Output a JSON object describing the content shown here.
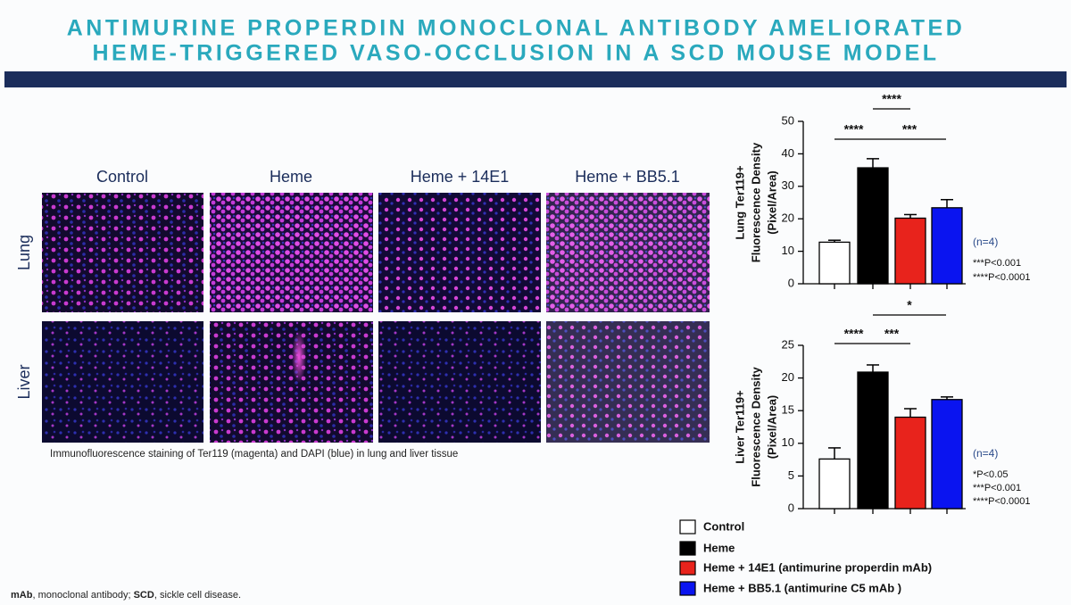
{
  "title_lines": [
    "ANTIMURINE PROPERDIN MONOCLONAL ANTIBODY AMELIORATED",
    "HEME-TRIGGERED VASO-OCCLUSION IN A SCD MOUSE MODEL"
  ],
  "image_panel": {
    "columns": [
      "Control",
      "Heme",
      "Heme + 14E1",
      "Heme + BB5.1"
    ],
    "rows": [
      "Lung",
      "Liver"
    ],
    "caption": "Immunofluorescence staining of Ter119 (magenta) and DAPI (blue) in lung and liver tissue"
  },
  "legend": [
    {
      "name": "Control",
      "color": "#ffffff"
    },
    {
      "name": "Heme",
      "color": "#000000"
    },
    {
      "name": "Heme + 14E1 (antimurine properdin mAb)",
      "color": "#e8231c"
    },
    {
      "name": "Heme + BB5.1 (antimurine C5 mAb )",
      "color": "#0a14f0"
    }
  ],
  "chart_data": [
    {
      "type": "bar",
      "ylabel": [
        "Lung Ter119+",
        "Fluorescence Density",
        "(Pixel/Area)"
      ],
      "values": [
        12.8,
        35.7,
        20.2,
        23.4
      ],
      "errors": [
        0.6,
        2.8,
        1.1,
        2.5
      ],
      "ylim": [
        0,
        50
      ],
      "yticks": [
        0,
        10,
        20,
        30,
        40,
        50
      ],
      "significance": [
        "****",
        "****",
        "***"
      ],
      "notes": [
        "(n=4)",
        "***P<0.001",
        "****P<0.0001"
      ]
    },
    {
      "type": "bar",
      "ylabel": [
        "Liver Ter119+",
        "Fluorescence Density",
        "(Pixel/Area)"
      ],
      "values": [
        7.6,
        20.9,
        14.0,
        16.7
      ],
      "errors": [
        1.7,
        1.1,
        1.3,
        0.4
      ],
      "ylim": [
        0,
        25
      ],
      "yticks": [
        0,
        5,
        10,
        15,
        20,
        25
      ],
      "significance": [
        "*",
        "****",
        "***"
      ],
      "notes": [
        "(n=4)",
        "*P<0.05",
        "***P<0.001",
        "****P<0.0001"
      ]
    }
  ],
  "footnote": [
    "mAb",
    ", monoclonal antibody; ",
    "SCD",
    ", sickle cell disease."
  ]
}
